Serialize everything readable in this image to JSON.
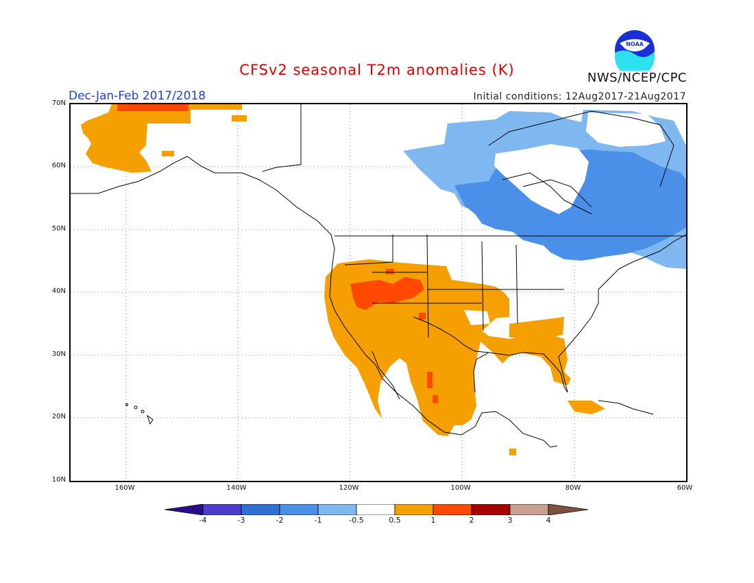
{
  "title": "CFSv2 seasonal T2m anomalies (K)",
  "period": "Dec-Jan-Feb 2017/2018",
  "initial_conditions": "Initial conditions: 12Aug2017-21Aug2017",
  "agency": "NWS/NCEP/CPC",
  "logo_text": "NOAA",
  "lat_labels": [
    "70N",
    "60N",
    "50N",
    "40N",
    "30N",
    "20N",
    "10N"
  ],
  "lon_labels": [
    "160W",
    "140W",
    "120W",
    "100W",
    "80W",
    "60W"
  ],
  "colorbar": {
    "labels": [
      "-4",
      "-3",
      "-2",
      "-1",
      "-0.5",
      "0.5",
      "1",
      "2",
      "3",
      "4"
    ],
    "colors": [
      "#2a0b8c",
      "#4b3cd0",
      "#2f6fd6",
      "#4a90e8",
      "#7fb8f0",
      "#ffffff",
      "#f5a000",
      "#ff4800",
      "#a80000",
      "#c9a090",
      "#805040"
    ]
  },
  "colors": {
    "orange": "#f5a000",
    "red": "#ff4800",
    "lightblue": "#7fb8f0",
    "blue": "#4a90e8",
    "title_red": "#e00000",
    "subtitle_blue": "#1f3fd0"
  }
}
